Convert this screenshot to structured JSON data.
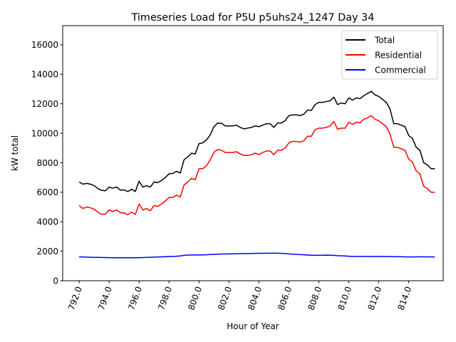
{
  "chart_data": {
    "type": "line",
    "title": "Timeseries Load for P5U p5uhs24_1247  Day 34",
    "xlabel": "Hour of Year",
    "ylabel": "kW total",
    "xlim": [
      790.9,
      816.3
    ],
    "ylim": [
      0,
      17300
    ],
    "x_ticks": [
      792,
      794,
      796,
      798,
      800,
      802,
      804,
      806,
      808,
      810,
      812,
      814
    ],
    "x_tick_labels": [
      "792.0",
      "794.0",
      "796.0",
      "798.0",
      "800.0",
      "802.0",
      "804.0",
      "806.0",
      "808.0",
      "810.0",
      "812.0",
      "814.0"
    ],
    "y_ticks": [
      0,
      2000,
      4000,
      6000,
      8000,
      10000,
      12000,
      14000,
      16000
    ],
    "y_tick_labels": [
      "0",
      "2000",
      "4000",
      "6000",
      "8000",
      "10000",
      "12000",
      "14000",
      "16000"
    ],
    "grid": false,
    "legend_position": "top-right",
    "x": [
      792.0,
      792.25,
      792.5,
      792.75,
      793.0,
      793.25,
      793.5,
      793.75,
      794.0,
      794.25,
      794.5,
      794.75,
      795.0,
      795.25,
      795.5,
      795.75,
      796.0,
      796.25,
      796.5,
      796.75,
      797.0,
      797.25,
      797.5,
      797.75,
      798.0,
      798.25,
      798.5,
      798.75,
      799.0,
      799.25,
      799.5,
      799.75,
      800.0,
      800.25,
      800.5,
      800.75,
      801.0,
      801.25,
      801.5,
      801.75,
      802.0,
      802.25,
      802.5,
      802.75,
      803.0,
      803.25,
      803.5,
      803.75,
      804.0,
      804.25,
      804.5,
      804.75,
      805.0,
      805.25,
      805.5,
      805.75,
      806.0,
      806.25,
      806.5,
      806.75,
      807.0,
      807.25,
      807.5,
      807.75,
      808.0,
      808.25,
      808.5,
      808.75,
      809.0,
      809.25,
      809.5,
      809.75,
      810.0,
      810.25,
      810.5,
      810.75,
      811.0,
      811.25,
      811.5,
      811.75,
      812.0,
      812.25,
      812.5,
      812.75,
      813.0,
      813.25,
      813.5,
      813.75,
      814.0,
      814.25,
      814.5,
      814.75,
      815.0,
      815.25,
      815.5,
      815.75
    ],
    "series": [
      {
        "name": "Total",
        "color": "#000000",
        "values": [
          6700,
          6550,
          6600,
          6550,
          6450,
          6250,
          6130,
          6100,
          6350,
          6280,
          6350,
          6150,
          6150,
          6050,
          6200,
          6050,
          6750,
          6350,
          6450,
          6350,
          6700,
          6650,
          6800,
          7000,
          7250,
          7280,
          7420,
          7300,
          8200,
          8400,
          8650,
          8600,
          9300,
          9350,
          9550,
          9900,
          10450,
          10700,
          10680,
          10500,
          10500,
          10500,
          10550,
          10400,
          10300,
          10350,
          10400,
          10500,
          10450,
          10550,
          10650,
          10650,
          10400,
          10700,
          10700,
          10850,
          11200,
          11250,
          11250,
          11200,
          11300,
          11580,
          11550,
          11950,
          12100,
          12100,
          12150,
          12200,
          12450,
          11950,
          12050,
          12000,
          12400,
          12250,
          12400,
          12350,
          12550,
          12700,
          12850,
          12600,
          12500,
          12300,
          12100,
          11650,
          10650,
          10650,
          10550,
          10450,
          9850,
          9650,
          9050,
          8850,
          8000,
          7850,
          7600,
          7600
        ]
      },
      {
        "name": "Residential",
        "color": "#ff0000",
        "values": [
          5100,
          4900,
          5000,
          4950,
          4850,
          4650,
          4500,
          4520,
          4800,
          4700,
          4800,
          4600,
          4600,
          4480,
          4650,
          4500,
          5200,
          4800,
          4900,
          4750,
          5100,
          5050,
          5200,
          5400,
          5650,
          5650,
          5800,
          5680,
          6500,
          6700,
          6950,
          6850,
          7600,
          7600,
          7800,
          8200,
          8700,
          8900,
          8850,
          8700,
          8700,
          8700,
          8750,
          8600,
          8500,
          8500,
          8550,
          8650,
          8550,
          8700,
          8800,
          8800,
          8550,
          8850,
          8850,
          9000,
          9350,
          9450,
          9450,
          9400,
          9500,
          9800,
          9800,
          10250,
          10350,
          10350,
          10400,
          10500,
          10800,
          10280,
          10350,
          10350,
          10750,
          10600,
          10750,
          10700,
          10950,
          11050,
          11200,
          10950,
          10850,
          10650,
          10450,
          9950,
          9050,
          9050,
          8950,
          8850,
          8250,
          8050,
          7450,
          7250,
          6400,
          6250,
          6000,
          6000
        ]
      },
      {
        "name": "Commercial",
        "color": "#0000ff",
        "values": [
          1620,
          1610,
          1600,
          1590,
          1585,
          1580,
          1575,
          1570,
          1565,
          1560,
          1560,
          1560,
          1560,
          1560,
          1560,
          1560,
          1565,
          1570,
          1580,
          1590,
          1600,
          1610,
          1620,
          1630,
          1640,
          1650,
          1660,
          1680,
          1720,
          1740,
          1745,
          1745,
          1750,
          1750,
          1760,
          1780,
          1790,
          1800,
          1810,
          1815,
          1820,
          1825,
          1830,
          1835,
          1840,
          1845,
          1850,
          1855,
          1860,
          1862,
          1865,
          1868,
          1870,
          1865,
          1855,
          1840,
          1820,
          1800,
          1790,
          1775,
          1760,
          1745,
          1730,
          1720,
          1725,
          1730,
          1735,
          1730,
          1720,
          1700,
          1690,
          1680,
          1660,
          1650,
          1648,
          1648,
          1648,
          1648,
          1645,
          1645,
          1640,
          1640,
          1640,
          1635,
          1630,
          1630,
          1625,
          1620,
          1615,
          1615,
          1618,
          1620,
          1620,
          1620,
          1615,
          1610
        ]
      }
    ]
  }
}
